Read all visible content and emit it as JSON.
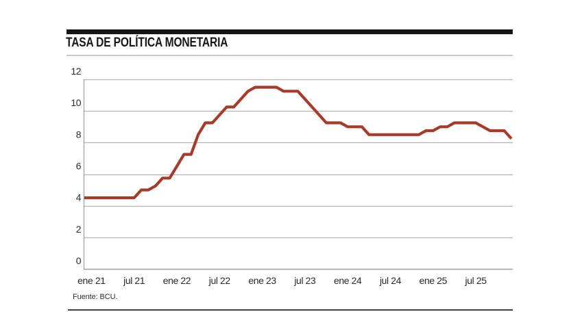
{
  "header": {
    "title": "TASA DE POLÍTICA MONETARIA"
  },
  "source_note": "Fuente: BCU.",
  "colors": {
    "line": "#a73b2a",
    "grid": "#b3b3b3",
    "axis": "#9b9b9b",
    "title_bar": "#161616",
    "tick_text": "#2a2a2a"
  },
  "chart_data": {
    "type": "line",
    "title": "TASA DE POLÍTICA MONETARIA",
    "unit": "%",
    "ylim": [
      0,
      12
    ],
    "y_ticks": [
      0,
      2,
      4,
      6,
      8,
      10,
      12
    ],
    "grid": true,
    "legend": "none",
    "x_tick_labels": [
      "ene 21",
      "jul 21",
      "ene 22",
      "jul 22",
      "ene 23",
      "jul 23",
      "ene 24",
      "jul 24",
      "ene 25",
      "jul 25"
    ],
    "series": [
      {
        "name": "Tasa de política monetaria",
        "color": "#a73b2a",
        "months": [
          "dic 20",
          "ene 21",
          "feb 21",
          "mar 21",
          "abr 21",
          "may 21",
          "jun 21",
          "jul 21",
          "ago 21",
          "sep 21",
          "oct 21",
          "nov 21",
          "dic 21",
          "ene 22",
          "feb 22",
          "mar 22",
          "abr 22",
          "may 22",
          "jun 22",
          "jul 22",
          "ago 22",
          "sep 22",
          "oct 22",
          "nov 22",
          "dic 22",
          "ene 23",
          "feb 23",
          "mar 23",
          "abr 23",
          "may 23",
          "jun 23",
          "jul 23",
          "ago 23",
          "sep 23",
          "oct 23",
          "nov 23",
          "dic 23",
          "ene 24",
          "feb 24",
          "mar 24",
          "abr 24",
          "may 24",
          "jun 24",
          "jul 24",
          "ago 24",
          "sep 24",
          "oct 24",
          "nov 24",
          "dic 24",
          "ene 25",
          "feb 25",
          "mar 25",
          "abr 25",
          "may 25",
          "jun 25",
          "jul 25",
          "ago 25",
          "sep 25",
          "oct 25",
          "nov 25",
          "dic 25"
        ],
        "values": [
          4.5,
          4.5,
          4.5,
          4.5,
          4.5,
          4.5,
          4.5,
          4.5,
          5.0,
          5.0,
          5.25,
          5.75,
          5.75,
          6.5,
          7.25,
          7.25,
          8.5,
          9.25,
          9.25,
          9.75,
          10.25,
          10.25,
          10.75,
          11.25,
          11.5,
          11.5,
          11.5,
          11.5,
          11.25,
          11.25,
          11.25,
          10.75,
          10.25,
          9.75,
          9.25,
          9.25,
          9.25,
          9.0,
          9.0,
          9.0,
          8.5,
          8.5,
          8.5,
          8.5,
          8.5,
          8.5,
          8.5,
          8.5,
          8.75,
          8.75,
          9.0,
          9.0,
          9.25,
          9.25,
          9.25,
          9.25,
          9.0,
          8.75,
          8.75,
          8.75,
          8.25
        ]
      }
    ]
  }
}
